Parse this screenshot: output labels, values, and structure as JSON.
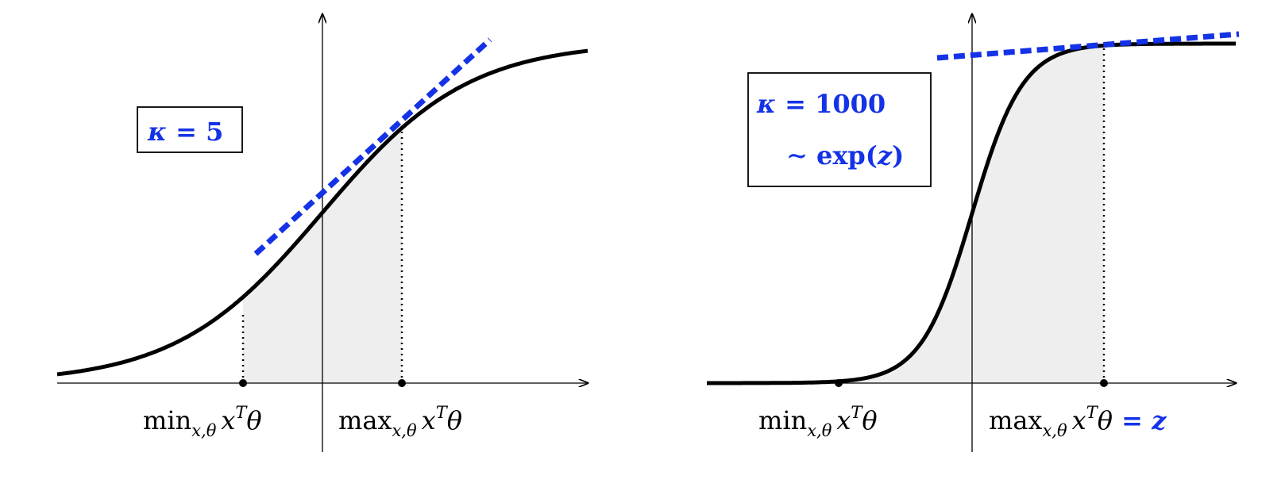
{
  "left_panel": {
    "kappa_symbol": "κ",
    "kappa_eq": " = 5",
    "min_label": {
      "op": "min",
      "sub": "x,θ",
      "x": "x",
      "sup": "T",
      "theta": "θ"
    },
    "max_label": {
      "op": "max",
      "sub": "x,θ",
      "x": "x",
      "sup": "T",
      "theta": "θ"
    }
  },
  "right_panel": {
    "kappa_symbol": "κ",
    "kappa_eq": " = 1000",
    "approx": "∼ exp(",
    "approx_var": "z",
    "approx_close": ")",
    "min_label": {
      "op": "min",
      "sub": "x,θ",
      "x": "x",
      "sup": "T",
      "theta": "θ"
    },
    "max_label": {
      "op": "max",
      "sub": "x,θ",
      "x": "x",
      "sup": "T",
      "theta": "θ"
    },
    "eq_z": " = ",
    "z": "z"
  },
  "colors": {
    "curve": "#000000",
    "tangent": "#1432e6",
    "shade": "#eeeeee",
    "axis": "#000000"
  }
}
